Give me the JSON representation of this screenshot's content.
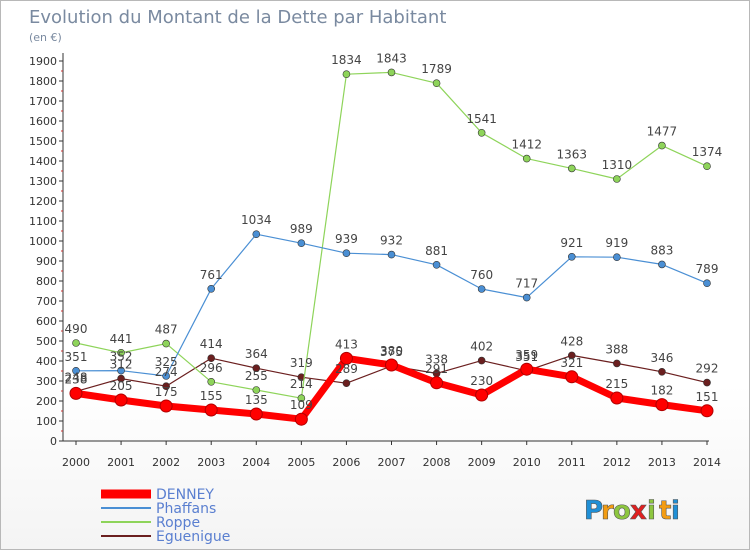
{
  "chart_data": {
    "type": "line",
    "title": "Evolution du Montant de la Dette par Habitant",
    "subtitle": "(en €)",
    "x": [
      "2000",
      "2001",
      "2002",
      "2003",
      "2004",
      "2005",
      "2006",
      "2007",
      "2008",
      "2009",
      "2010",
      "2011",
      "2012",
      "2013",
      "2014"
    ],
    "ylim": [
      0,
      1900
    ],
    "yticks": [
      0,
      100,
      200,
      300,
      400,
      500,
      600,
      700,
      800,
      900,
      1000,
      1100,
      1200,
      1300,
      1400,
      1500,
      1600,
      1700,
      1800,
      1900
    ],
    "grid": false,
    "legend_position": "bottom-left",
    "series": [
      {
        "name": "DENNEY",
        "color": "#ff0000",
        "values": [
          238,
          205,
          175,
          155,
          135,
          109,
          413,
          380,
          291,
          230,
          359,
          321,
          215,
          182,
          151
        ]
      },
      {
        "name": "Phaffans",
        "color": "#4a8fd4",
        "values": [
          351,
          352,
          325,
          761,
          1034,
          989,
          939,
          932,
          881,
          760,
          717,
          921,
          919,
          883,
          789
        ]
      },
      {
        "name": "Roppe",
        "color": "#8ed45a",
        "values": [
          490,
          441,
          487,
          296,
          255,
          214,
          1834,
          1843,
          1789,
          1541,
          1412,
          1363,
          1310,
          1477,
          1374
        ]
      },
      {
        "name": "Eguenigue",
        "color": "#6b1f1f",
        "values": [
          248,
          312,
          274,
          414,
          364,
          319,
          289,
          375,
          338,
          402,
          351,
          428,
          388,
          346,
          292
        ]
      }
    ]
  },
  "brand": {
    "letters": [
      "P",
      "r",
      "o",
      "x",
      "i",
      "t",
      "i"
    ],
    "colors": [
      "#1f8fd6",
      "#f39c12",
      "#8dc63f",
      "#e02020",
      "#8dc63f",
      "#f39c12",
      "#1f8fd6"
    ]
  }
}
